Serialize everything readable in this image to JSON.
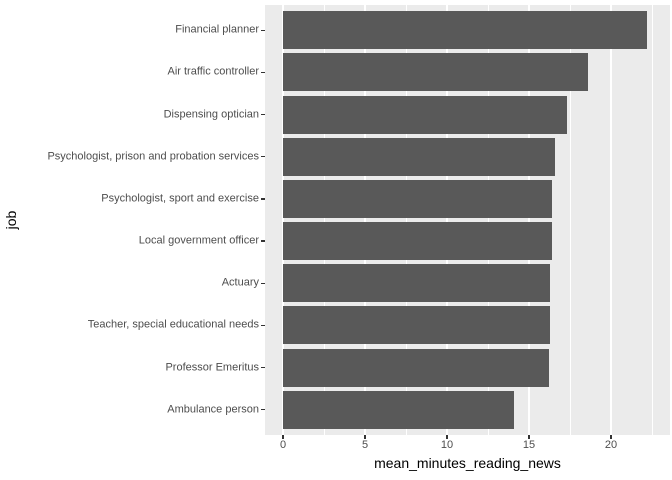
{
  "chart_data": {
    "type": "bar",
    "orientation": "horizontal",
    "title": "",
    "xlabel": "mean_minutes_reading_news",
    "ylabel": "job",
    "categories": [
      "Financial planner",
      "Air traffic controller",
      "Dispensing optician",
      "Psychologist, prison and probation services",
      "Psychologist, sport and exercise",
      "Local government officer",
      "Actuary",
      "Teacher, special educational needs",
      "Professor Emeritus",
      "Ambulance person"
    ],
    "values": [
      22.2,
      18.6,
      17.3,
      16.6,
      16.4,
      16.4,
      16.3,
      16.3,
      16.2,
      14.1
    ],
    "x_domain": [
      -1.1,
      23.6
    ],
    "x_ticks": {
      "major": [
        0,
        5,
        10,
        15,
        20
      ],
      "minor": [
        2.5,
        7.5,
        12.5,
        17.5,
        22.5
      ]
    },
    "x_tick_labels": [
      "0",
      "5",
      "10",
      "15",
      "20"
    ],
    "bar_width_ratio": 0.9,
    "grid": "on",
    "legend": "none",
    "colors": {
      "bar": "#595959",
      "panel_bg": "#EBEBEB",
      "grid": "#FFFFFF",
      "tick_text": "#4D4D4D",
      "axis_title": "#000000",
      "tick_mark": "#333333"
    }
  }
}
